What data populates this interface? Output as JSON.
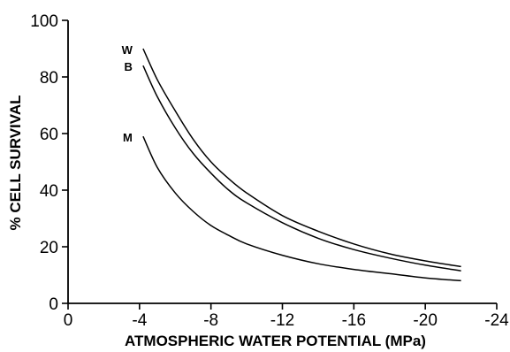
{
  "chart_data": {
    "type": "line",
    "title": "",
    "xlabel": "ATMOSPHERIC WATER POTENTIAL (MPa)",
    "ylabel": "% CELL SURVIVAL",
    "xlim": [
      0,
      -24
    ],
    "ylim": [
      0,
      100
    ],
    "x_ticks": [
      0,
      -4,
      -8,
      -12,
      -16,
      -20,
      -24
    ],
    "x_tick_labels": [
      "0",
      "-4",
      "-8",
      "-12",
      "-16",
      "-20",
      "-24"
    ],
    "y_ticks": [
      0,
      20,
      40,
      60,
      80,
      100
    ],
    "y_tick_labels": [
      "0",
      "20",
      "40",
      "60",
      "80",
      "100"
    ],
    "grid": false,
    "legend": "none",
    "series": [
      {
        "name": "W",
        "x": [
          -4.2,
          -5,
          -6,
          -7,
          -8,
          -9,
          -10,
          -12,
          -14,
          -16,
          -18,
          -20,
          -22
        ],
        "values": [
          90,
          79,
          68,
          58,
          50,
          44,
          39,
          31,
          25.5,
          21,
          17.5,
          15,
          13
        ]
      },
      {
        "name": "B",
        "x": [
          -4.2,
          -5,
          -6,
          -7,
          -8,
          -9,
          -10,
          -12,
          -14,
          -16,
          -18,
          -20,
          -22
        ],
        "values": [
          84,
          73,
          62,
          53,
          46,
          40,
          35.5,
          28.5,
          23,
          19,
          16,
          13.5,
          11.5
        ]
      },
      {
        "name": "M",
        "x": [
          -4.2,
          -5,
          -6,
          -7,
          -8,
          -9,
          -10,
          -12,
          -14,
          -16,
          -18,
          -20,
          -22
        ],
        "values": [
          59,
          48,
          39,
          32.5,
          27.5,
          24,
          21,
          17,
          14,
          12,
          10.5,
          9,
          8
        ]
      }
    ]
  }
}
